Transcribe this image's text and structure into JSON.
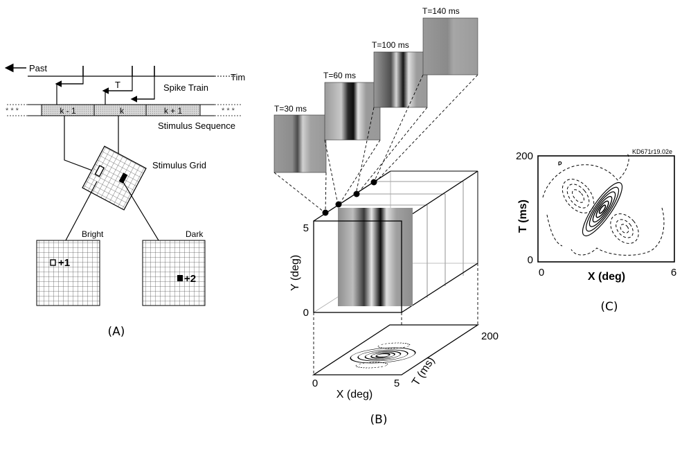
{
  "panel_a": {
    "past_label": "Past",
    "time_label": "Tim",
    "t_label": "T",
    "spike_train_label": "Spike Train",
    "stimulus_sequence_label": "Stimulus Sequence",
    "frames": [
      "k - 1",
      "k",
      "k + 1"
    ],
    "stimulus_grid_label": "Stimulus Grid",
    "bright_label": "Bright",
    "dark_label": "Dark",
    "bright_increment": "+1",
    "dark_increment": "+2",
    "caption": "(A)"
  },
  "panel_b": {
    "frames": [
      {
        "label": "T=30 ms"
      },
      {
        "label": "T=60 ms"
      },
      {
        "label": "T=100 ms"
      },
      {
        "label": "T=140 ms"
      }
    ],
    "y_axis_label": "Y (deg)",
    "y_ticks": [
      "0",
      "5"
    ],
    "x_axis_label": "X (deg)",
    "x_ticks": [
      "0",
      "5"
    ],
    "t_axis_label": "T (ms)",
    "t_tick": "200",
    "caption": "(B)"
  },
  "panel_c": {
    "id_label": "KD671r19.02e",
    "y_axis_label": "T (ms)",
    "y_ticks": [
      "0",
      "200"
    ],
    "x_axis_label": "X (deg)",
    "x_ticks": [
      "0",
      "6"
    ],
    "caption": "(C)"
  }
}
